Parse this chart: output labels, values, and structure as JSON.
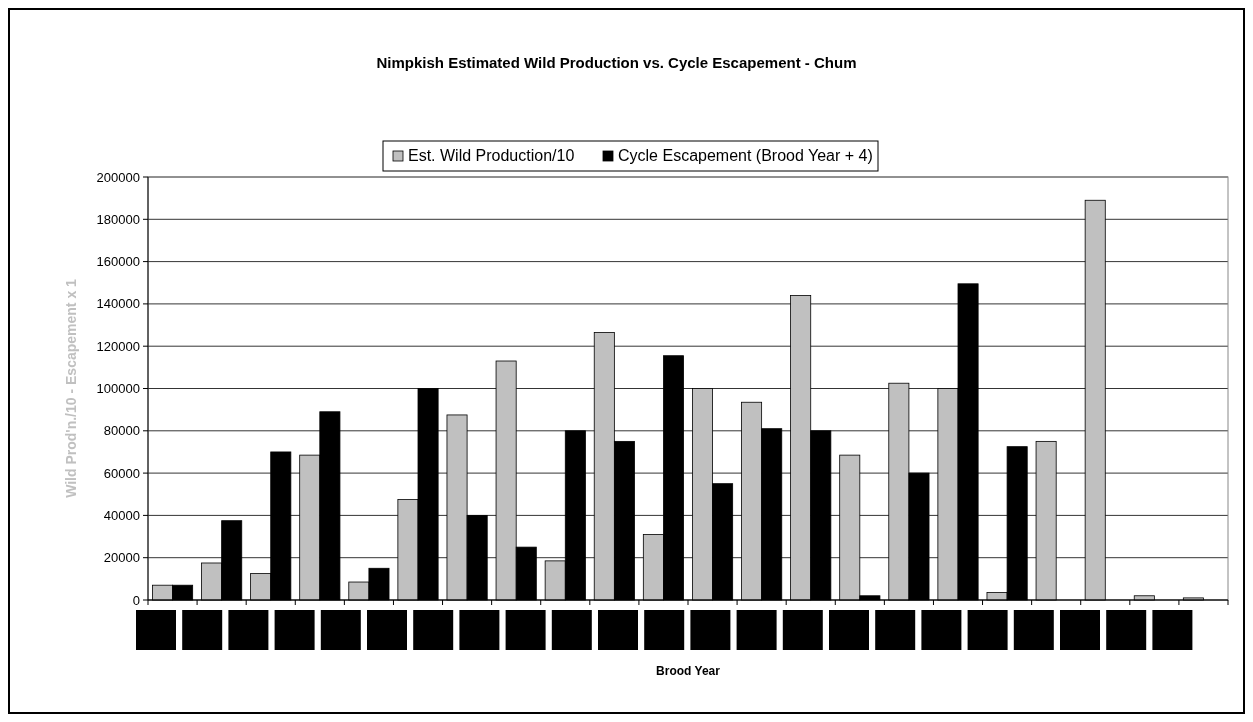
{
  "chart_data": {
    "type": "bar",
    "title": "Nimpkish Estimated Wild Production vs. Cycle Escapement - Chum",
    "xlabel": "Brood Year",
    "ylabel": "Wild Prod'n./10 - Escapement x 1",
    "categories": [
      null,
      null,
      null,
      null,
      null,
      null,
      null,
      null,
      null,
      null,
      null,
      null,
      null,
      null,
      null,
      null,
      null,
      null,
      null,
      null,
      null,
      null
    ],
    "series": [
      {
        "name": "Est. Wild Production/10",
        "color": "#c0c0c0",
        "values": [
          7000,
          17500,
          12500,
          68500,
          8500,
          47500,
          87500,
          113000,
          18500,
          126500,
          31000,
          100000,
          93500,
          144000,
          68500,
          102500,
          100000,
          3500,
          75000,
          189000,
          2000,
          1000
        ]
      },
      {
        "name": "Cycle Escapement (Brood Year + 4)",
        "color": "#000000",
        "values": [
          7000,
          37500,
          70000,
          89000,
          15000,
          100000,
          40000,
          25000,
          80000,
          75000,
          115500,
          55000,
          81000,
          80000,
          2000,
          60000,
          149500,
          72500,
          null,
          null,
          null,
          null
        ]
      }
    ],
    "ylim": [
      0,
      200000
    ],
    "yticks": [
      0,
      20000,
      40000,
      60000,
      80000,
      100000,
      120000,
      140000,
      160000,
      180000,
      200000
    ],
    "grid": "y",
    "legend": "top"
  }
}
